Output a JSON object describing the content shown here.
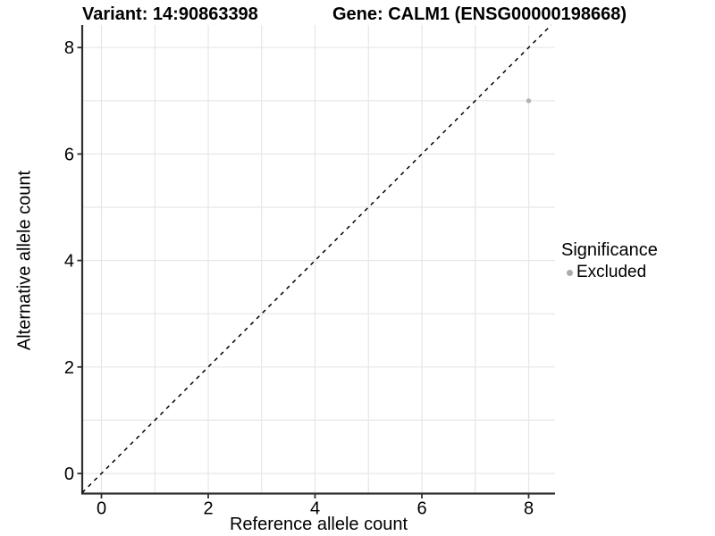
{
  "titles": {
    "variant": "Variant: 14:90863398",
    "gene": "Gene: CALM1 (ENSG00000198668)"
  },
  "chart_data": {
    "type": "scatter",
    "title_left": "Variant: 14:90863398",
    "title_right": "Gene: CALM1 (ENSG00000198668)",
    "xlabel": "Reference allele count",
    "ylabel": "Alternative allele count",
    "xlim": [
      -0.36,
      8.49
    ],
    "ylim": [
      -0.38,
      8.42
    ],
    "x_ticks": [
      0,
      2,
      4,
      6,
      8
    ],
    "y_ticks": [
      0,
      2,
      4,
      6,
      8
    ],
    "gridlines_x": [
      0,
      1,
      2,
      3,
      4,
      5,
      6,
      7,
      8
    ],
    "gridlines_y": [
      0,
      1,
      2,
      3,
      4,
      5,
      6,
      7,
      8
    ],
    "grid": true,
    "identity_line": {
      "style": "dashed",
      "color": "#000000",
      "from": 0,
      "to": 8.42
    },
    "series": [
      {
        "name": "Excluded",
        "color": "#b3b3b3",
        "points": [
          {
            "x": 8,
            "y": 7
          }
        ]
      }
    ],
    "legend": {
      "title": "Significance",
      "position": "right",
      "items": [
        {
          "label": "Excluded",
          "color": "#ababab"
        }
      ]
    },
    "colors": {
      "grid": "#e7e7e7",
      "axis": "#2e2e2e",
      "tick": "#2e2e2e",
      "text": "#000000"
    }
  }
}
